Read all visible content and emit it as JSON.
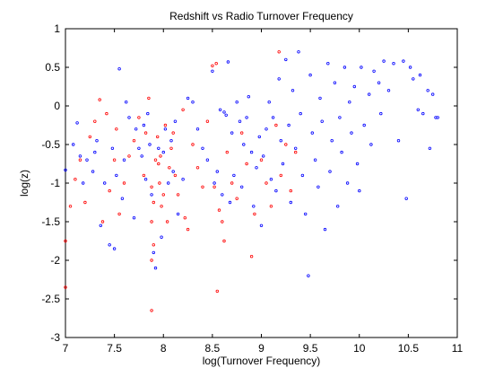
{
  "chart_data": {
    "type": "scatter",
    "title": "Redshift vs Radio Turnover Frequency",
    "xlabel": "log(Turnover Frequency)",
    "ylabel": "log(z)",
    "xlim": [
      7,
      11
    ],
    "ylim": [
      -3,
      1
    ],
    "xticks": [
      "7",
      "7.5",
      "8",
      "8.5",
      "9",
      "9.5",
      "10",
      "10.5",
      "11"
    ],
    "yticks": [
      "-3",
      "-2.5",
      "-2",
      "-1.5",
      "-1",
      "-0.5",
      "0",
      "0.5",
      "1"
    ],
    "grid": false,
    "colors": {
      "blue": "#0000ff",
      "red": "#ff0000"
    },
    "series": [
      {
        "color": "blue",
        "points": [
          [
            7.0,
            -0.83
          ],
          [
            7.08,
            -0.5
          ],
          [
            7.12,
            -0.22
          ],
          [
            7.15,
            -0.65
          ],
          [
            7.18,
            -1.0
          ],
          [
            7.22,
            -0.7
          ],
          [
            7.28,
            -0.85
          ],
          [
            7.3,
            -0.6
          ],
          [
            7.32,
            -0.45
          ],
          [
            7.36,
            -1.55
          ],
          [
            7.4,
            -1.0
          ],
          [
            7.45,
            -1.8
          ],
          [
            7.48,
            -0.55
          ],
          [
            7.5,
            -1.85
          ],
          [
            7.52,
            -0.9
          ],
          [
            7.55,
            0.48
          ],
          [
            7.58,
            -1.2
          ],
          [
            7.6,
            -0.7
          ],
          [
            7.62,
            0.05
          ],
          [
            7.65,
            -0.15
          ],
          [
            7.7,
            -1.45
          ],
          [
            7.72,
            -0.3
          ],
          [
            7.75,
            -0.55
          ],
          [
            7.78,
            -0.65
          ],
          [
            7.8,
            -0.25
          ],
          [
            7.82,
            -0.95
          ],
          [
            7.84,
            -0.1
          ],
          [
            7.86,
            -0.5
          ],
          [
            7.88,
            -1.15
          ],
          [
            7.9,
            -1.9
          ],
          [
            7.92,
            -2.1
          ],
          [
            7.95,
            -0.55
          ],
          [
            7.98,
            -1.7
          ],
          [
            8.0,
            -0.6
          ],
          [
            8.02,
            -0.3
          ],
          [
            8.05,
            -1.0
          ],
          [
            8.08,
            -0.45
          ],
          [
            8.1,
            -0.85
          ],
          [
            8.12,
            -0.2
          ],
          [
            8.15,
            -1.4
          ],
          [
            8.2,
            -0.95
          ],
          [
            8.25,
            0.1
          ],
          [
            8.3,
            0.05
          ],
          [
            8.35,
            -0.3
          ],
          [
            8.4,
            -0.55
          ],
          [
            8.45,
            -0.7
          ],
          [
            8.5,
            0.45
          ],
          [
            8.52,
            -1.0
          ],
          [
            8.55,
            -0.85
          ],
          [
            8.58,
            -0.05
          ],
          [
            8.6,
            -1.15
          ],
          [
            8.62,
            -0.08
          ],
          [
            8.64,
            -0.12
          ],
          [
            8.66,
            0.57
          ],
          [
            8.68,
            -1.25
          ],
          [
            8.7,
            -0.35
          ],
          [
            8.72,
            -0.9
          ],
          [
            8.75,
            0.05
          ],
          [
            8.78,
            -0.2
          ],
          [
            8.8,
            -1.05
          ],
          [
            8.82,
            -0.5
          ],
          [
            8.85,
            -0.15
          ],
          [
            8.87,
            0.12
          ],
          [
            8.9,
            -0.6
          ],
          [
            8.92,
            -1.3
          ],
          [
            8.95,
            -0.8
          ],
          [
            8.98,
            -0.4
          ],
          [
            9.0,
            -1.55
          ],
          [
            9.02,
            -0.65
          ],
          [
            9.05,
            -0.3
          ],
          [
            9.08,
            0.05
          ],
          [
            9.1,
            -0.95
          ],
          [
            9.12,
            -0.15
          ],
          [
            9.15,
            -1.1
          ],
          [
            9.18,
            0.35
          ],
          [
            9.2,
            -0.45
          ],
          [
            9.22,
            -0.75
          ],
          [
            9.25,
            0.6
          ],
          [
            9.28,
            -0.25
          ],
          [
            9.3,
            -1.25
          ],
          [
            9.32,
            0.2
          ],
          [
            9.35,
            -0.55
          ],
          [
            9.38,
            0.7
          ],
          [
            9.4,
            -0.1
          ],
          [
            9.42,
            -0.9
          ],
          [
            9.45,
            -1.4
          ],
          [
            9.48,
            -2.2
          ],
          [
            9.5,
            0.4
          ],
          [
            9.52,
            -0.35
          ],
          [
            9.55,
            -0.7
          ],
          [
            9.58,
            -1.05
          ],
          [
            9.6,
            0.1
          ],
          [
            9.62,
            -0.2
          ],
          [
            9.65,
            -1.6
          ],
          [
            9.68,
            0.55
          ],
          [
            9.7,
            -0.85
          ],
          [
            9.72,
            -0.45
          ],
          [
            9.75,
            0.3
          ],
          [
            9.78,
            -1.3
          ],
          [
            9.8,
            -0.15
          ],
          [
            9.82,
            -0.6
          ],
          [
            9.85,
            0.5
          ],
          [
            9.88,
            -1.0
          ],
          [
            9.9,
            0.05
          ],
          [
            9.92,
            -0.35
          ],
          [
            9.95,
            0.25
          ],
          [
            9.98,
            -0.75
          ],
          [
            10.0,
            -1.1
          ],
          [
            10.02,
            0.5
          ],
          [
            10.05,
            -0.25
          ],
          [
            10.1,
            0.15
          ],
          [
            10.12,
            -0.5
          ],
          [
            10.15,
            0.45
          ],
          [
            10.2,
            0.3
          ],
          [
            10.22,
            -0.1
          ],
          [
            10.25,
            0.58
          ],
          [
            10.3,
            0.2
          ],
          [
            10.35,
            0.55
          ],
          [
            10.4,
            -0.45
          ],
          [
            10.45,
            0.58
          ],
          [
            10.48,
            -1.2
          ],
          [
            10.52,
            0.5
          ],
          [
            10.55,
            0.35
          ],
          [
            10.6,
            -0.05
          ],
          [
            10.62,
            0.4
          ],
          [
            10.65,
            -0.1
          ],
          [
            10.7,
            0.2
          ],
          [
            10.72,
            -0.55
          ],
          [
            10.75,
            0.15
          ],
          [
            10.78,
            -0.15
          ],
          [
            10.8,
            -0.15
          ]
        ]
      },
      {
        "color": "red",
        "points": [
          [
            7.0,
            -1.75
          ],
          [
            7.0,
            -2.35
          ],
          [
            7.05,
            -1.3
          ],
          [
            7.1,
            -0.95
          ],
          [
            7.15,
            -0.7
          ],
          [
            7.2,
            -1.25
          ],
          [
            7.25,
            -0.4
          ],
          [
            7.3,
            -0.2
          ],
          [
            7.35,
            0.08
          ],
          [
            7.38,
            -1.5
          ],
          [
            7.42,
            -0.1
          ],
          [
            7.45,
            -1.1
          ],
          [
            7.5,
            -0.7
          ],
          [
            7.52,
            -0.3
          ],
          [
            7.55,
            -1.4
          ],
          [
            7.6,
            -1.0
          ],
          [
            7.65,
            -0.65
          ],
          [
            7.7,
            -0.45
          ],
          [
            7.75,
            -0.15
          ],
          [
            7.8,
            -0.9
          ],
          [
            7.82,
            -0.35
          ],
          [
            7.85,
            0.1
          ],
          [
            7.88,
            -1.05
          ],
          [
            7.88,
            -1.5
          ],
          [
            7.88,
            -2.0
          ],
          [
            7.88,
            -2.65
          ],
          [
            7.9,
            -1.25
          ],
          [
            7.9,
            -1.8
          ],
          [
            7.92,
            -0.7
          ],
          [
            7.94,
            -0.4
          ],
          [
            7.95,
            -0.75
          ],
          [
            7.96,
            -1.0
          ],
          [
            7.97,
            -0.65
          ],
          [
            7.98,
            -1.3
          ],
          [
            8.0,
            -1.15
          ],
          [
            8.02,
            -0.25
          ],
          [
            8.04,
            -1.5
          ],
          [
            8.06,
            -0.8
          ],
          [
            8.08,
            -0.55
          ],
          [
            8.1,
            -0.35
          ],
          [
            8.12,
            -0.9
          ],
          [
            8.15,
            -1.15
          ],
          [
            8.2,
            -0.05
          ],
          [
            8.22,
            -1.45
          ],
          [
            8.25,
            -1.6
          ],
          [
            8.3,
            -0.5
          ],
          [
            8.35,
            -0.8
          ],
          [
            8.4,
            -1.05
          ],
          [
            8.45,
            -0.2
          ],
          [
            8.5,
            0.52
          ],
          [
            8.52,
            -1.05
          ],
          [
            8.54,
            0.55
          ],
          [
            8.55,
            -2.4
          ],
          [
            8.57,
            -1.35
          ],
          [
            8.6,
            -1.5
          ],
          [
            8.62,
            -1.75
          ],
          [
            8.65,
            -0.6
          ],
          [
            8.7,
            -1.0
          ],
          [
            8.75,
            -1.2
          ],
          [
            8.8,
            -0.35
          ],
          [
            8.85,
            -0.75
          ],
          [
            8.9,
            -1.95
          ],
          [
            8.93,
            -1.4
          ],
          [
            9.0,
            -0.7
          ],
          [
            9.05,
            -1.0
          ],
          [
            9.1,
            -1.3
          ],
          [
            9.15,
            -0.25
          ],
          [
            9.18,
            0.7
          ],
          [
            9.2,
            -0.9
          ],
          [
            9.25,
            -0.5
          ],
          [
            9.3,
            -1.1
          ],
          [
            9.35,
            -0.6
          ]
        ]
      }
    ]
  }
}
